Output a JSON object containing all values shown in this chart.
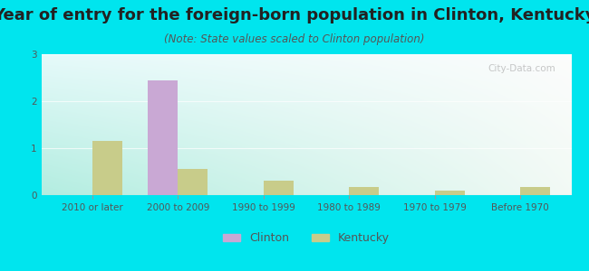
{
  "title": "Year of entry for the foreign-born population in Clinton, Kentucky",
  "subtitle": "(Note: State values scaled to Clinton population)",
  "categories": [
    "2010 or later",
    "2000 to 2009",
    "1990 to 1999",
    "1980 to 1989",
    "1970 to 1979",
    "Before 1970"
  ],
  "clinton_values": [
    0,
    2.45,
    0,
    0,
    0,
    0
  ],
  "kentucky_values": [
    1.15,
    0.55,
    0.3,
    0.17,
    0.1,
    0.17
  ],
  "clinton_color": "#c9a8d4",
  "kentucky_color": "#c8cc8a",
  "background_outer": "#00e5ee",
  "ylim": [
    0,
    3
  ],
  "yticks": [
    0,
    1,
    2,
    3
  ],
  "bar_width": 0.35,
  "title_fontsize": 13,
  "subtitle_fontsize": 8.5,
  "tick_fontsize": 7.5,
  "legend_fontsize": 9
}
